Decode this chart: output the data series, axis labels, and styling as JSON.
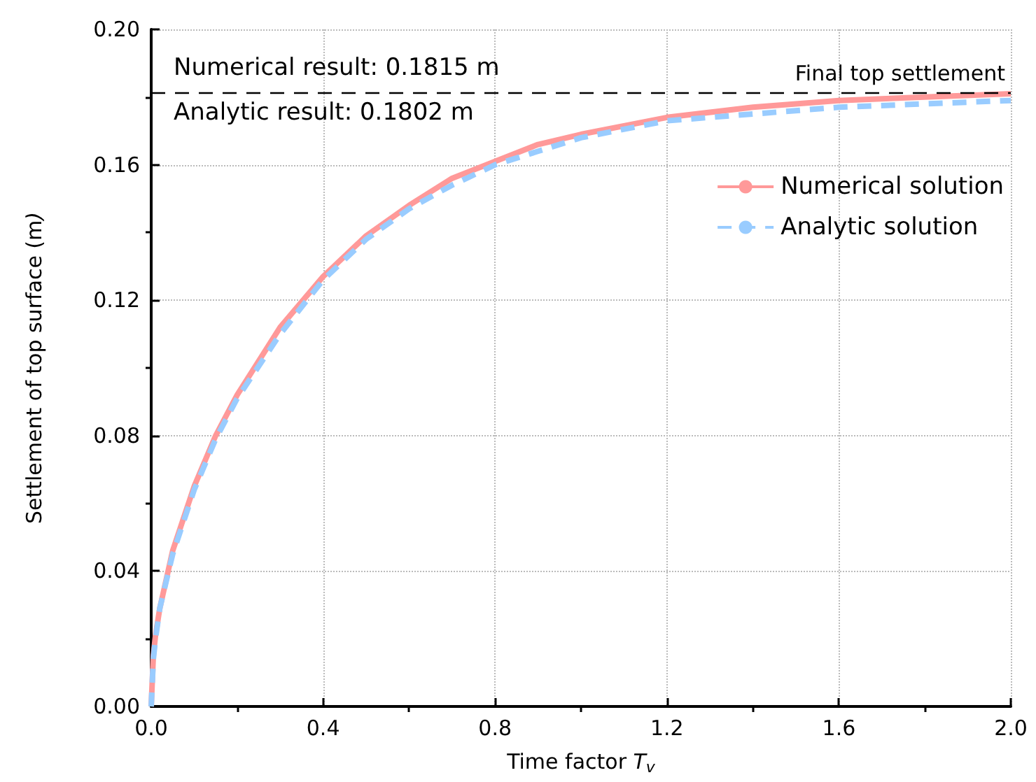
{
  "chart_data": {
    "type": "line",
    "xlabel": "Time factor T$_{v}$",
    "ylabel": "Settlement of top surface (m)",
    "x": [
      0,
      0.005,
      0.01,
      0.02,
      0.05,
      0.1,
      0.15,
      0.2,
      0.3,
      0.4,
      0.5,
      0.6,
      0.7,
      0.8,
      0.9,
      1.0,
      1.2,
      1.4,
      1.6,
      1.8,
      2.0
    ],
    "series": [
      {
        "name": "Numerical solution",
        "color": "#ff9999",
        "line_style": "solid",
        "values": [
          0,
          0.015,
          0.021,
          0.029,
          0.046,
          0.065,
          0.08,
          0.092,
          0.112,
          0.127,
          0.139,
          0.148,
          0.156,
          0.161,
          0.166,
          0.169,
          0.174,
          0.177,
          0.179,
          0.18,
          0.181
        ]
      },
      {
        "name": "Analytic solution",
        "color": "#99ccff",
        "line_style": "dashed",
        "values": [
          0,
          0.014,
          0.02,
          0.029,
          0.045,
          0.064,
          0.079,
          0.091,
          0.11,
          0.126,
          0.138,
          0.147,
          0.154,
          0.16,
          0.164,
          0.168,
          0.173,
          0.175,
          0.177,
          0.178,
          0.179
        ]
      }
    ],
    "xlim": [
      0,
      2.0
    ],
    "xticks": [
      {
        "value": 0,
        "label": "0.0"
      },
      0.4,
      0.8,
      1.2,
      1.6,
      {
        "value": 2,
        "label": "2.0"
      }
    ],
    "ylim": [
      0,
      0.2
    ],
    "yticks": [
      {
        "value": 0,
        "label": "0.00"
      },
      0.04,
      0.08,
      0.12,
      0.16,
      {
        "value": 0.2,
        "label": "0.20"
      }
    ],
    "ref_lines": [
      {
        "axis": "y",
        "value": 0.1815,
        "label": "Final top settlement",
        "color": "#000000",
        "line_style": "dashed"
      }
    ],
    "annotations": [
      "Numerical result: 0.1815 m",
      "Analytic result: 0.1802 m"
    ],
    "grid": true,
    "legend": "right",
    "marker": "none"
  }
}
